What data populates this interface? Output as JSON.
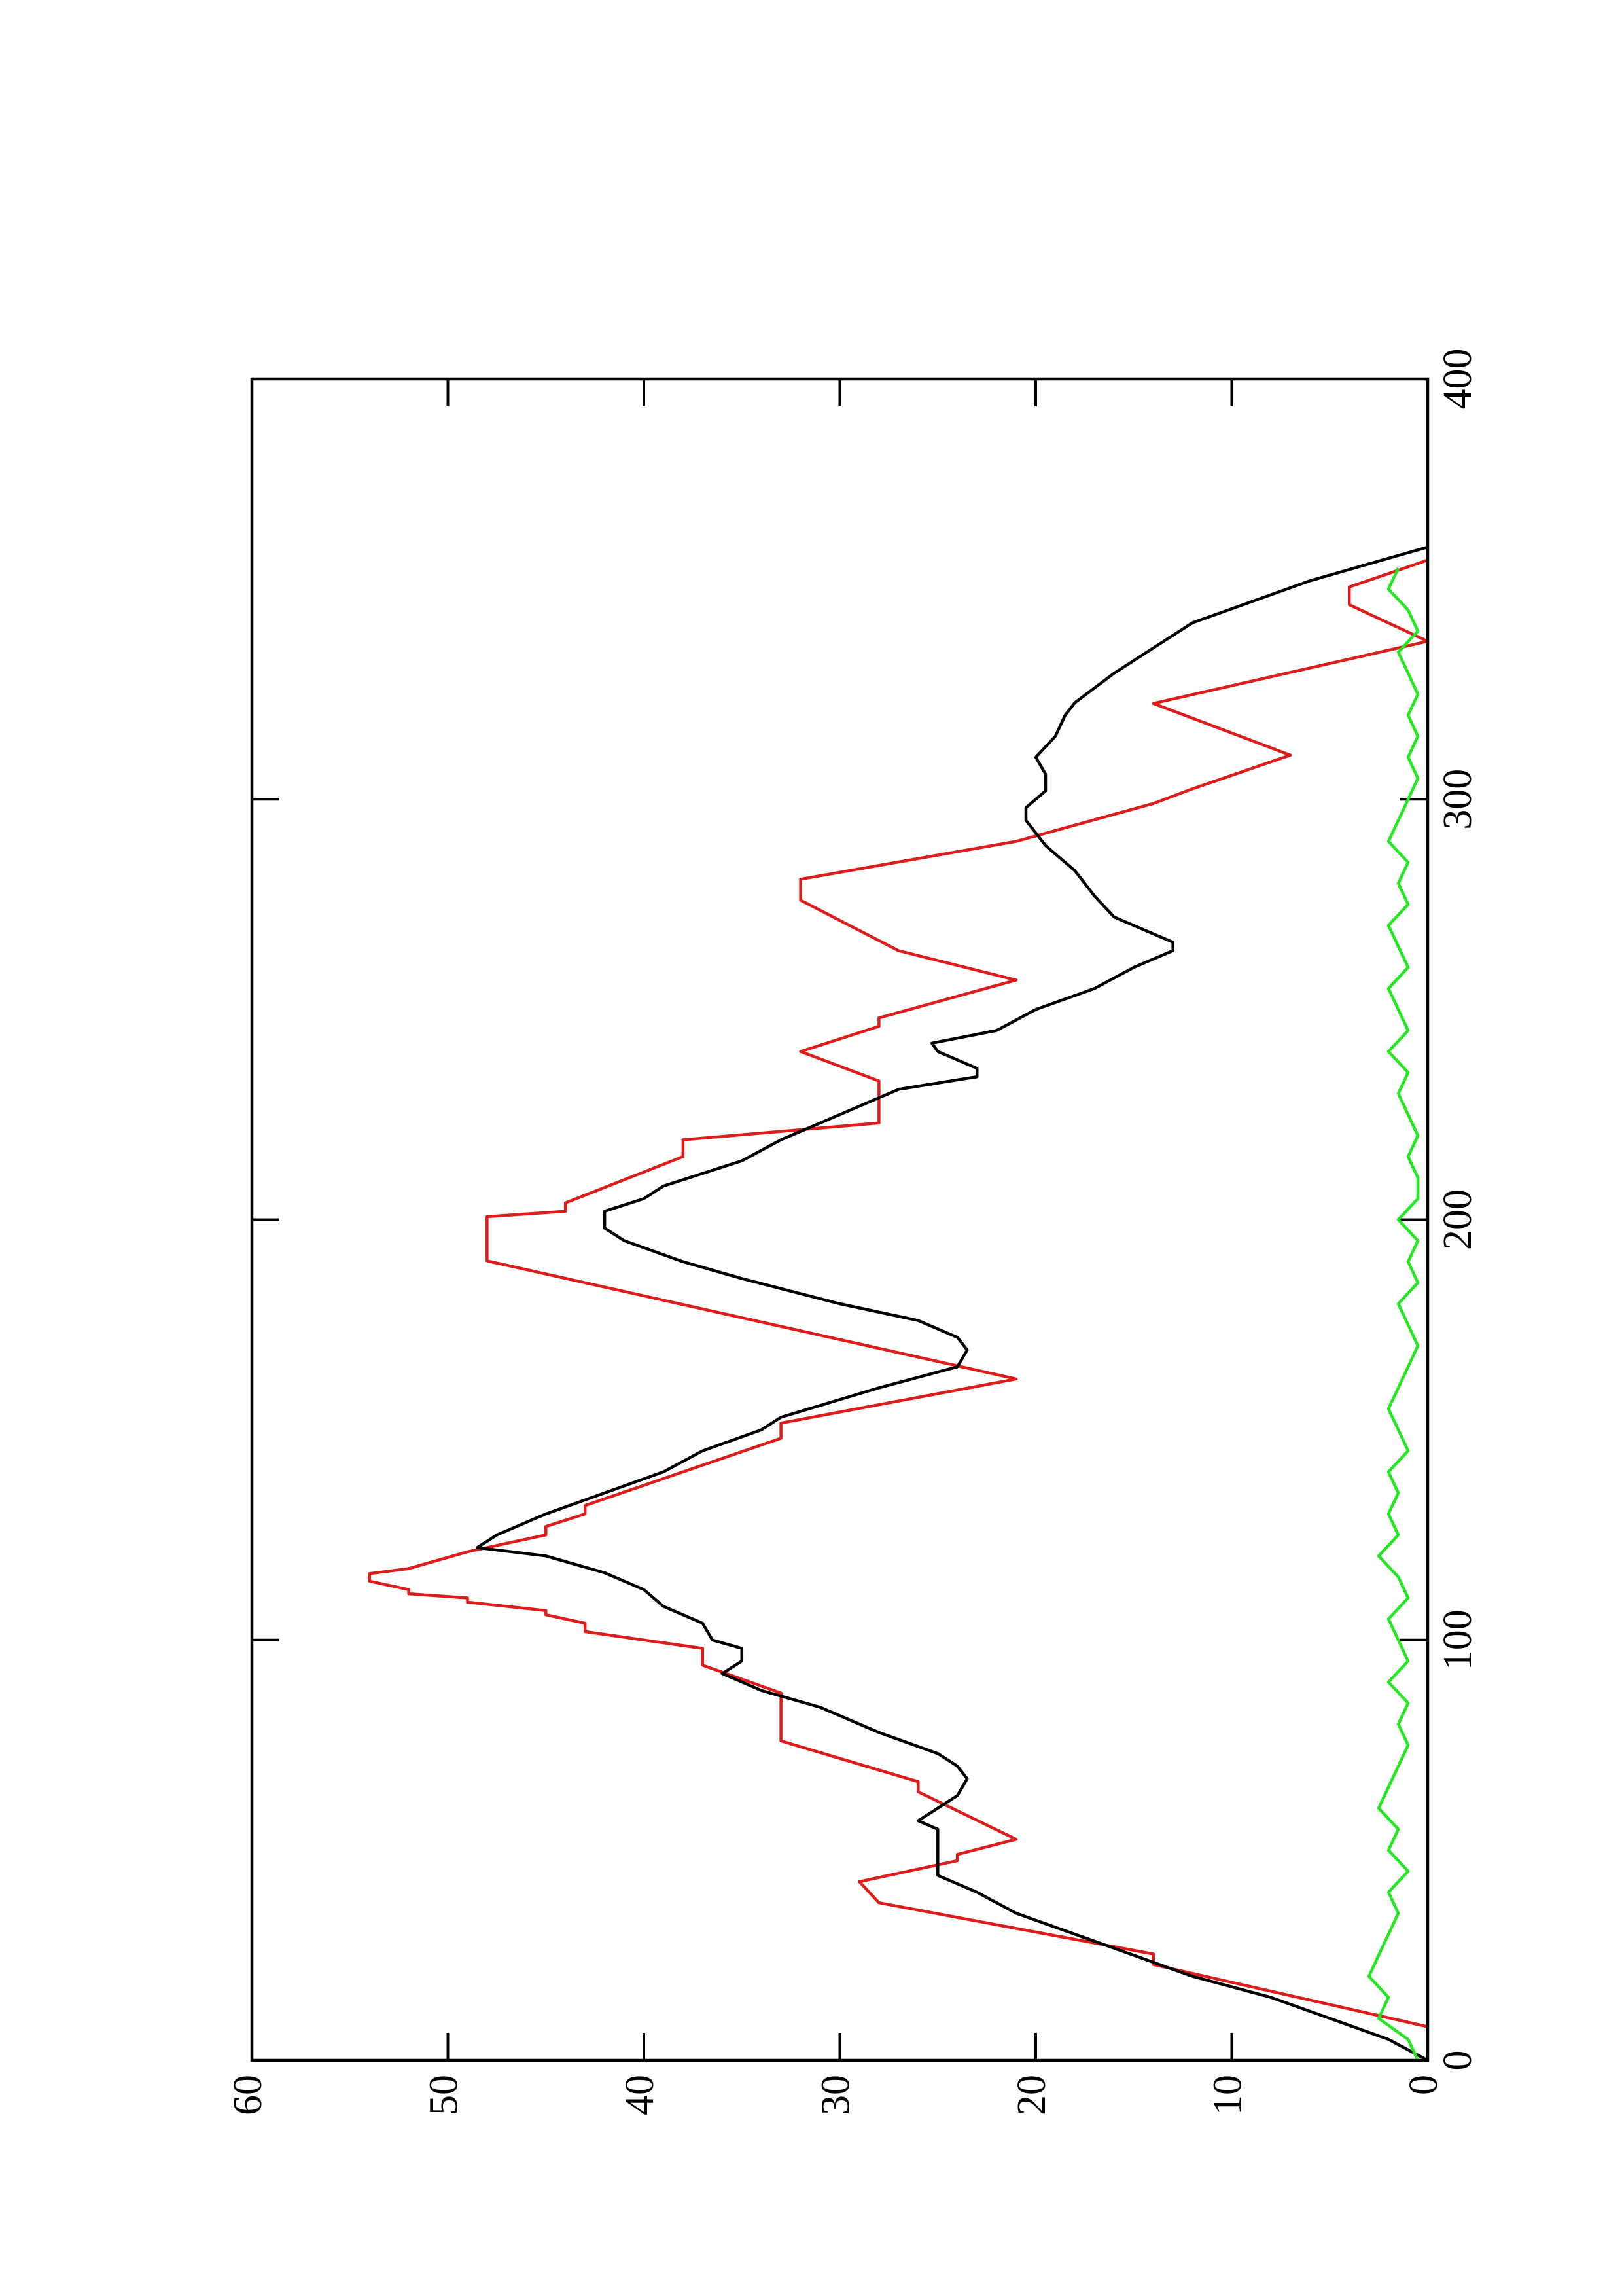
{
  "chart_data": {
    "type": "line",
    "xlim": [
      0,
      400
    ],
    "xticks": [
      0,
      100,
      200,
      300,
      400
    ],
    "ylim": [
      0,
      60
    ],
    "yticks": [
      0,
      10,
      20,
      30,
      40,
      50,
      60
    ],
    "rotated": true,
    "series": [
      {
        "color": "#dd1c1c",
        "x": [
          8,
          22.8,
          25.3,
          37.5,
          42.5,
          47.5,
          49,
          52.6,
          63.9,
          66.3,
          76,
          87.4,
          94,
          98,
          102,
          104,
          106,
          107,
          109,
          110,
          111,
          112,
          114,
          115.8,
          117,
          121,
          125,
          127,
          130,
          132,
          148,
          151.6,
          162.1,
          190.2,
          200.7,
          202,
          204,
          215,
          219,
          223,
          233,
          240,
          246,
          248,
          257,
          264,
          276,
          281,
          290,
          299,
          302.5,
          310.5,
          322.8,
          337.6,
          346.3,
          350.5,
          356.9
        ],
        "values": [
          0,
          14,
          14,
          28,
          29,
          24,
          24,
          21,
          26,
          26,
          33,
          33,
          37,
          37,
          43,
          43,
          45,
          45,
          49,
          49,
          52,
          52,
          54,
          54,
          52,
          49,
          45,
          45,
          43,
          43,
          33,
          33,
          21,
          48,
          48,
          44,
          44,
          38,
          38,
          28,
          28,
          32,
          28,
          28,
          21,
          27,
          32,
          32,
          21,
          14,
          12,
          7,
          14,
          0,
          4,
          4,
          0
        ]
      },
      {
        "color": "#000000",
        "x": [
          0,
          5,
          10,
          15,
          20,
          25,
          30,
          35,
          40,
          44,
          50,
          55,
          57,
          60,
          63,
          67,
          70,
          73,
          78,
          84,
          88,
          92,
          95,
          98,
          100,
          104,
          108,
          112,
          116,
          120,
          122,
          125,
          130,
          135,
          140,
          145,
          150,
          153,
          160,
          165,
          169,
          172,
          176,
          180,
          186,
          190,
          195,
          198,
          202,
          205,
          208,
          214,
          219,
          225,
          231,
          234,
          236,
          238,
          240,
          242,
          245,
          250,
          255,
          260,
          264,
          266,
          268,
          272,
          277,
          283,
          289,
          292,
          295,
          298,
          302,
          306,
          310,
          315,
          320,
          323,
          330,
          336,
          342,
          347,
          352,
          356,
          360
        ],
        "values": [
          0,
          2,
          5,
          8,
          12,
          15,
          18,
          21,
          23,
          25,
          25,
          25,
          26,
          25,
          24,
          23.5,
          24,
          25,
          28,
          31,
          34,
          36,
          35,
          35,
          36.5,
          37,
          39,
          40,
          42,
          45,
          48.5,
          47.5,
          45,
          42,
          39,
          37,
          34,
          33,
          28,
          24,
          23.5,
          24,
          26,
          30,
          35,
          38,
          41,
          42,
          42,
          40,
          39,
          35,
          33,
          30,
          27,
          23,
          23,
          24,
          25,
          25.3,
          22,
          20,
          17,
          15,
          13,
          13,
          14,
          16,
          17,
          18,
          19.5,
          20,
          20.5,
          20.5,
          19.5,
          19.5,
          20,
          19,
          18.5,
          18,
          16,
          14,
          12,
          9,
          6,
          3,
          0
        ]
      },
      {
        "color": "#22e822",
        "x": [
          0,
          5,
          10,
          15,
          20,
          25,
          30,
          35,
          40,
          45,
          50,
          55,
          60,
          65,
          70,
          75,
          80,
          85,
          90,
          95,
          100,
          105,
          110,
          115,
          120,
          125,
          130,
          135,
          140,
          145,
          150,
          155,
          160,
          165,
          170,
          175,
          180,
          185,
          190,
          195,
          200,
          205,
          210,
          215,
          220,
          225,
          230,
          235,
          240,
          245,
          250,
          255,
          260,
          265,
          270,
          275,
          280,
          285,
          290,
          295,
          300,
          305,
          310,
          315,
          320,
          325,
          330,
          335,
          340,
          345,
          350,
          355
        ],
        "values": [
          0.5,
          1,
          2.5,
          2,
          3,
          2.5,
          2,
          1.5,
          2,
          1,
          2,
          1.5,
          2.5,
          2,
          1.5,
          1,
          1.5,
          1,
          2,
          1,
          1.5,
          2,
          1,
          1.5,
          2.5,
          1.5,
          2,
          1.5,
          2,
          1,
          1.5,
          2,
          1.5,
          1,
          0.5,
          1,
          1.5,
          0.5,
          1,
          0.5,
          1.5,
          0.5,
          0.5,
          1,
          0.5,
          1,
          1.5,
          1,
          2,
          1,
          1.5,
          2,
          1,
          1.5,
          2,
          1,
          1.5,
          1,
          2,
          1.5,
          1,
          0.5,
          1,
          0.5,
          1,
          0.5,
          1,
          1.5,
          0.5,
          1,
          2,
          1.5
        ]
      }
    ]
  }
}
